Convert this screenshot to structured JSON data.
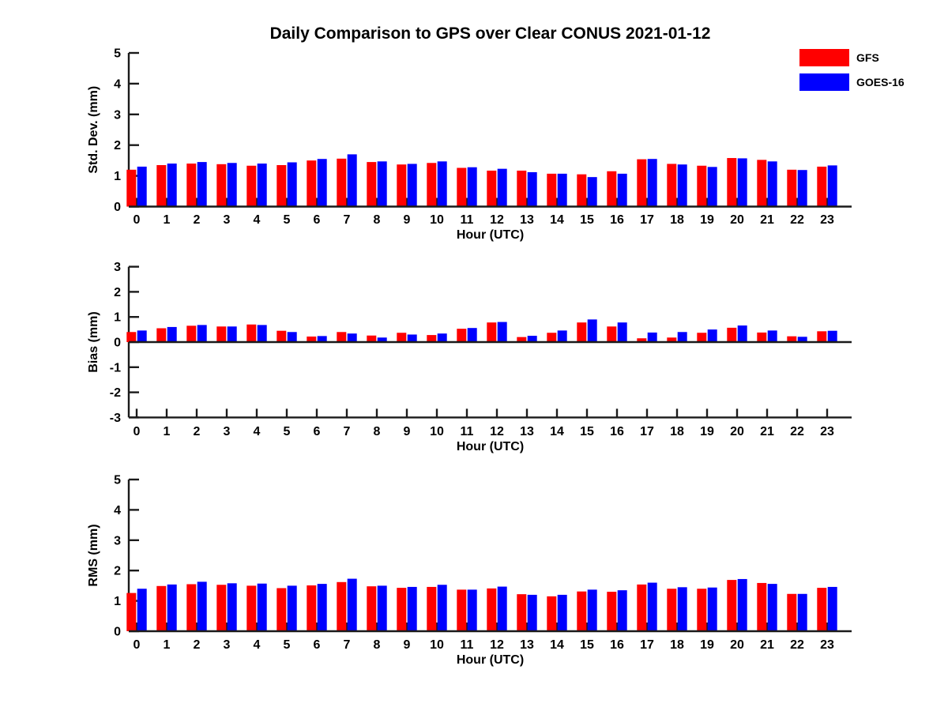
{
  "title": "Daily Comparison to GPS over Clear CONUS 2021-01-12",
  "legend": {
    "items": [
      {
        "label": "GFS",
        "color": "#ff0000"
      },
      {
        "label": "GOES-16",
        "color": "#0000ff"
      }
    ]
  },
  "colors": {
    "gfs": "#ff0000",
    "goes16": "#0000ff",
    "axis": "#1a1a1a",
    "text": "#000000"
  },
  "chart_data": [
    {
      "type": "bar",
      "ylabel": "Std. Dev. (mm)",
      "xlabel": "Hour (UTC)",
      "ylim": [
        0,
        5
      ],
      "yticks": [
        0,
        1,
        2,
        3,
        4,
        5
      ],
      "grid": false,
      "legend_position": "top-right",
      "categories": [
        "0",
        "1",
        "2",
        "3",
        "4",
        "5",
        "6",
        "7",
        "8",
        "9",
        "10",
        "11",
        "12",
        "13",
        "14",
        "15",
        "16",
        "17",
        "18",
        "19",
        "20",
        "21",
        "22",
        "23"
      ],
      "series": [
        {
          "name": "GFS",
          "color": "#ff0000",
          "values": [
            1.2,
            1.35,
            1.4,
            1.38,
            1.33,
            1.35,
            1.5,
            1.56,
            1.45,
            1.37,
            1.42,
            1.26,
            1.17,
            1.17,
            1.07,
            1.05,
            1.15,
            1.54,
            1.39,
            1.33,
            1.58,
            1.52,
            1.2,
            1.3
          ]
        },
        {
          "name": "GOES-16",
          "color": "#0000ff",
          "values": [
            1.3,
            1.4,
            1.45,
            1.42,
            1.4,
            1.44,
            1.55,
            1.7,
            1.47,
            1.39,
            1.47,
            1.28,
            1.23,
            1.12,
            1.07,
            0.96,
            1.07,
            1.55,
            1.37,
            1.29,
            1.57,
            1.47,
            1.19,
            1.34
          ]
        }
      ]
    },
    {
      "type": "bar",
      "ylabel": "Bias (mm)",
      "xlabel": "Hour (UTC)",
      "ylim": [
        -3,
        3
      ],
      "yticks": [
        -3,
        -2,
        -1,
        0,
        1,
        2,
        3
      ],
      "grid": false,
      "categories": [
        "0",
        "1",
        "2",
        "3",
        "4",
        "5",
        "6",
        "7",
        "8",
        "9",
        "10",
        "11",
        "12",
        "13",
        "14",
        "15",
        "16",
        "17",
        "18",
        "19",
        "20",
        "21",
        "22",
        "23"
      ],
      "series": [
        {
          "name": "GFS",
          "color": "#ff0000",
          "values": [
            0.4,
            0.55,
            0.65,
            0.62,
            0.7,
            0.45,
            0.22,
            0.4,
            0.26,
            0.37,
            0.28,
            0.53,
            0.78,
            0.2,
            0.37,
            0.78,
            0.62,
            0.15,
            0.18,
            0.37,
            0.57,
            0.38,
            0.23,
            0.43
          ]
        },
        {
          "name": "GOES-16",
          "color": "#0000ff",
          "values": [
            0.46,
            0.6,
            0.68,
            0.62,
            0.68,
            0.4,
            0.24,
            0.34,
            0.18,
            0.3,
            0.34,
            0.56,
            0.8,
            0.25,
            0.46,
            0.9,
            0.78,
            0.38,
            0.4,
            0.5,
            0.66,
            0.46,
            0.21,
            0.45
          ]
        }
      ]
    },
    {
      "type": "bar",
      "ylabel": "RMS (mm)",
      "xlabel": "Hour (UTC)",
      "ylim": [
        0,
        5
      ],
      "yticks": [
        0,
        1,
        2,
        3,
        4,
        5
      ],
      "grid": false,
      "categories": [
        "0",
        "1",
        "2",
        "3",
        "4",
        "5",
        "6",
        "7",
        "8",
        "9",
        "10",
        "11",
        "12",
        "13",
        "14",
        "15",
        "16",
        "17",
        "18",
        "19",
        "20",
        "21",
        "22",
        "23"
      ],
      "series": [
        {
          "name": "GFS",
          "color": "#ff0000",
          "values": [
            1.26,
            1.49,
            1.55,
            1.53,
            1.5,
            1.42,
            1.51,
            1.62,
            1.48,
            1.43,
            1.46,
            1.37,
            1.41,
            1.22,
            1.15,
            1.31,
            1.3,
            1.54,
            1.4,
            1.4,
            1.69,
            1.59,
            1.23,
            1.43
          ]
        },
        {
          "name": "GOES-16",
          "color": "#0000ff",
          "values": [
            1.4,
            1.54,
            1.63,
            1.58,
            1.57,
            1.5,
            1.56,
            1.73,
            1.5,
            1.46,
            1.53,
            1.37,
            1.47,
            1.2,
            1.2,
            1.37,
            1.35,
            1.6,
            1.45,
            1.44,
            1.72,
            1.56,
            1.23,
            1.46
          ]
        }
      ]
    }
  ]
}
